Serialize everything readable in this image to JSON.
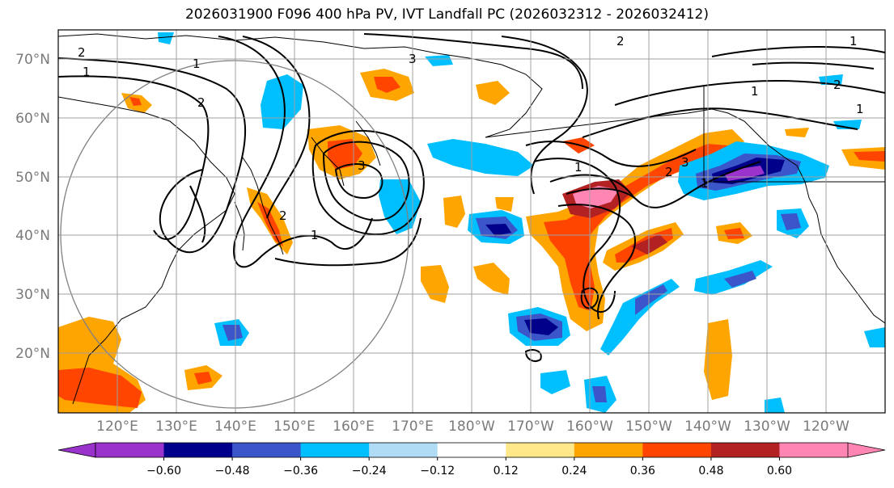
{
  "title": "2026031900 F096 400 hPa PV, IVT Landfall PC (2026032312 - 2026032412)",
  "lat_labels": [
    "70°N",
    "60°N",
    "50°N",
    "40°N",
    "30°N",
    "20°N"
  ],
  "lon_labels": [
    "120°E",
    "130°E",
    "140°E",
    "150°E",
    "160°E",
    "170°E",
    "180°W",
    "170°W",
    "160°W",
    "150°W",
    "140°W",
    "130°W",
    "120°W"
  ],
  "colorbar": {
    "colors": [
      "#9933cc",
      "#00008b",
      "#3a56c8",
      "#00bfff",
      "#b0dcf5",
      "#ffffff",
      "#ffe88a",
      "#ffa500",
      "#ff4500",
      "#b22222",
      "#ff85b3"
    ],
    "tick_labels": [
      "−0.60",
      "−0.48",
      "−0.36",
      "−0.24",
      "−0.12",
      "0.12",
      "0.24",
      "0.36",
      "0.48",
      "0.60"
    ]
  },
  "contour_labels": [
    "2",
    "1",
    "2",
    "3",
    "2",
    "1",
    "1",
    "3",
    "1",
    "2",
    "1",
    "3",
    "1",
    "2",
    "1",
    "1",
    "2"
  ]
}
